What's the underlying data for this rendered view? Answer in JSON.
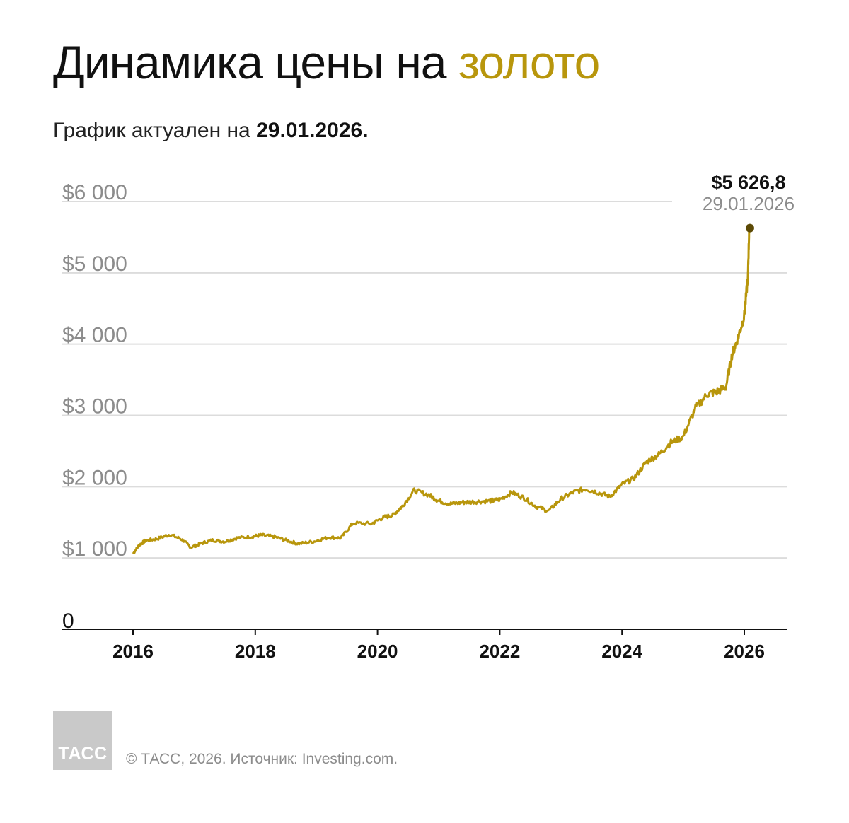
{
  "header": {
    "title_main": "Динамика цены на ",
    "title_accent": "золото",
    "subtitle_prefix": "График актуален на ",
    "subtitle_date": "29.01.2026."
  },
  "chart_data": {
    "type": "line",
    "title": "Динамика цены на золото",
    "subtitle": "График актуален на 29.01.2026.",
    "xlabel": "",
    "ylabel": "",
    "xlim": [
      2016,
      2027.3
    ],
    "ylim": [
      0,
      6000
    ],
    "x_ticks": [
      "2016",
      "2018",
      "2020",
      "2022",
      "2024",
      "2026"
    ],
    "y_ticks": [
      {
        "value": 0,
        "label": "0"
      },
      {
        "value": 1000,
        "label": "$1 000"
      },
      {
        "value": 2000,
        "label": "$2 000"
      },
      {
        "value": 3000,
        "label": "$3 000"
      },
      {
        "value": 4000,
        "label": "$4 000"
      },
      {
        "value": 5000,
        "label": "$5 000"
      },
      {
        "value": 6000,
        "label": "$6 000"
      }
    ],
    "grid": true,
    "line_color": "#b8960c",
    "marker_color": "#5c4a05",
    "series": [
      {
        "x": [
          2016.0,
          2016.1,
          2016.2,
          2016.4,
          2016.6,
          2016.8,
          2016.95,
          2017.1,
          2017.3,
          2017.5,
          2017.7,
          2017.95,
          2018.1,
          2018.3,
          2018.5,
          2018.7,
          2018.95,
          2019.2,
          2019.4,
          2019.6,
          2019.9,
          2020.1,
          2020.25,
          2020.4,
          2020.6,
          2020.85,
          2021.0,
          2021.2,
          2021.4,
          2021.6,
          2021.85,
          2022.0,
          2022.2,
          2022.4,
          2022.6,
          2022.8,
          2023.0,
          2023.2,
          2023.4,
          2023.6,
          2023.8,
          2024.0,
          2024.2,
          2024.4,
          2024.6,
          2024.8,
          2025.0,
          2025.2,
          2025.4,
          2025.55,
          2025.7,
          2025.8,
          2025.9,
          2026.0,
          2026.06,
          2026.08
        ],
        "y": [
          1060,
          1180,
          1240,
          1270,
          1330,
          1260,
          1150,
          1200,
          1250,
          1230,
          1280,
          1300,
          1320,
          1300,
          1250,
          1200,
          1230,
          1290,
          1280,
          1490,
          1480,
          1570,
          1600,
          1720,
          1950,
          1880,
          1800,
          1760,
          1780,
          1790,
          1800,
          1820,
          1920,
          1840,
          1720,
          1660,
          1830,
          1920,
          1970,
          1920,
          1860,
          2030,
          2120,
          2350,
          2450,
          2620,
          2700,
          3100,
          3300,
          3330,
          3400,
          3850,
          4100,
          4400,
          4950,
          5626.8
        ]
      }
    ],
    "last_point": {
      "date": "29.01.2026",
      "label": "$5 626,8",
      "x": 2026.08,
      "y": 5626.8
    }
  },
  "footer": {
    "logo_text": "ТАСС",
    "source": "© ТАСС, 2026. Источник: Investing.com."
  }
}
